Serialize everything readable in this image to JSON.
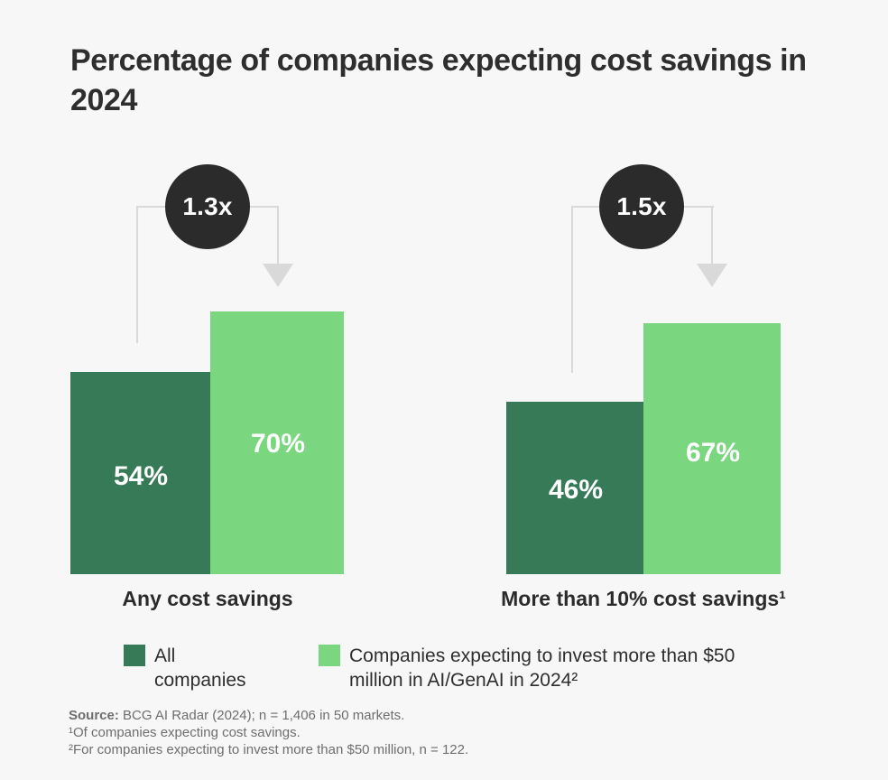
{
  "title": "Percentage of companies expecting cost savings in 2024",
  "colors": {
    "background": "#f7f7f8",
    "dark_green": "#377a58",
    "light_green": "#7bd680",
    "circle": "#2b2b2b",
    "connector_line": "#d9d9d9",
    "text_dark": "#2e2e2e",
    "footnote_gray": "#6e6e6e",
    "bar_value_text": "#ffffff"
  },
  "chart_data": {
    "type": "bar",
    "title": "Percentage of companies expecting cost savings in 2024",
    "categories": [
      "Any cost savings",
      "More than 10% cost savings¹"
    ],
    "series": [
      {
        "name": "All companies",
        "values": [
          54,
          46
        ],
        "color": "#377a58"
      },
      {
        "name": "Companies expecting to invest more than $50 million in AI/GenAI in 2024²",
        "values": [
          70,
          67
        ],
        "color": "#7bd680"
      }
    ],
    "value_labels": [
      [
        "54%",
        "46%"
      ],
      [
        "70%",
        "67%"
      ]
    ],
    "multipliers": [
      "1.3x",
      "1.5x"
    ],
    "unit": "%",
    "ylim": [
      0,
      100
    ],
    "grid": false,
    "axes_hidden": true,
    "legend_position": "bottom",
    "annotation_style": "circle badge with bracket arrow from dark bar to light bar"
  },
  "groups": [
    {
      "category": "Any cost savings",
      "multiplier": "1.3x",
      "dark_label": "54%",
      "light_label": "70%"
    },
    {
      "category": "More than 10% cost savings¹",
      "multiplier": "1.5x",
      "dark_label": "46%",
      "light_label": "67%"
    }
  ],
  "legend": {
    "items": [
      {
        "label": "All companies"
      },
      {
        "label": "Companies expecting to invest more than $50 million in AI/GenAI in 2024²"
      }
    ]
  },
  "footnotes": {
    "source_label": "Source:",
    "source_text": " BCG AI Radar (2024); n = 1,406 in 50 markets.",
    "note1": "¹Of companies expecting cost savings.",
    "note2": "²For companies expecting to invest more than $50 million, n = 122."
  }
}
